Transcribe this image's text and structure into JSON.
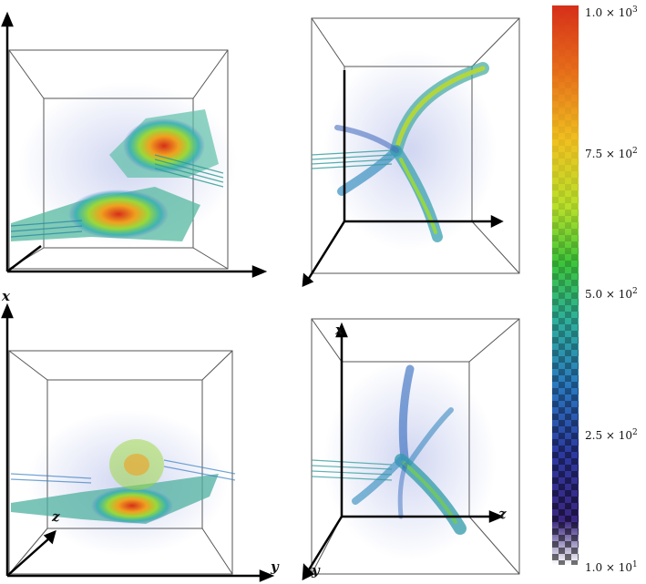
{
  "panels": {
    "bottom_left": {
      "label_x": "x",
      "label_y": "y",
      "label_z": "z"
    },
    "bottom_right": {
      "label_x": "x",
      "label_y": "y",
      "label_z": "z"
    }
  },
  "colorbar": {
    "ticks": [
      {
        "mantissa": "1.0 × 10",
        "exp": "3"
      },
      {
        "mantissa": "7.5 × 10",
        "exp": "2"
      },
      {
        "mantissa": "5.0 × 10",
        "exp": "2"
      },
      {
        "mantissa": "2.5 × 10",
        "exp": "2"
      },
      {
        "mantissa": "1.0 × 10",
        "exp": "1"
      }
    ],
    "colors_top_to_bottom": [
      "#d62f1a",
      "#e8701a",
      "#f0c020",
      "#b8e02a",
      "#3cc43a",
      "#2fb09a",
      "#2a78c0",
      "#2c3aa0",
      "#3a2580",
      "#ffffff"
    ]
  }
}
